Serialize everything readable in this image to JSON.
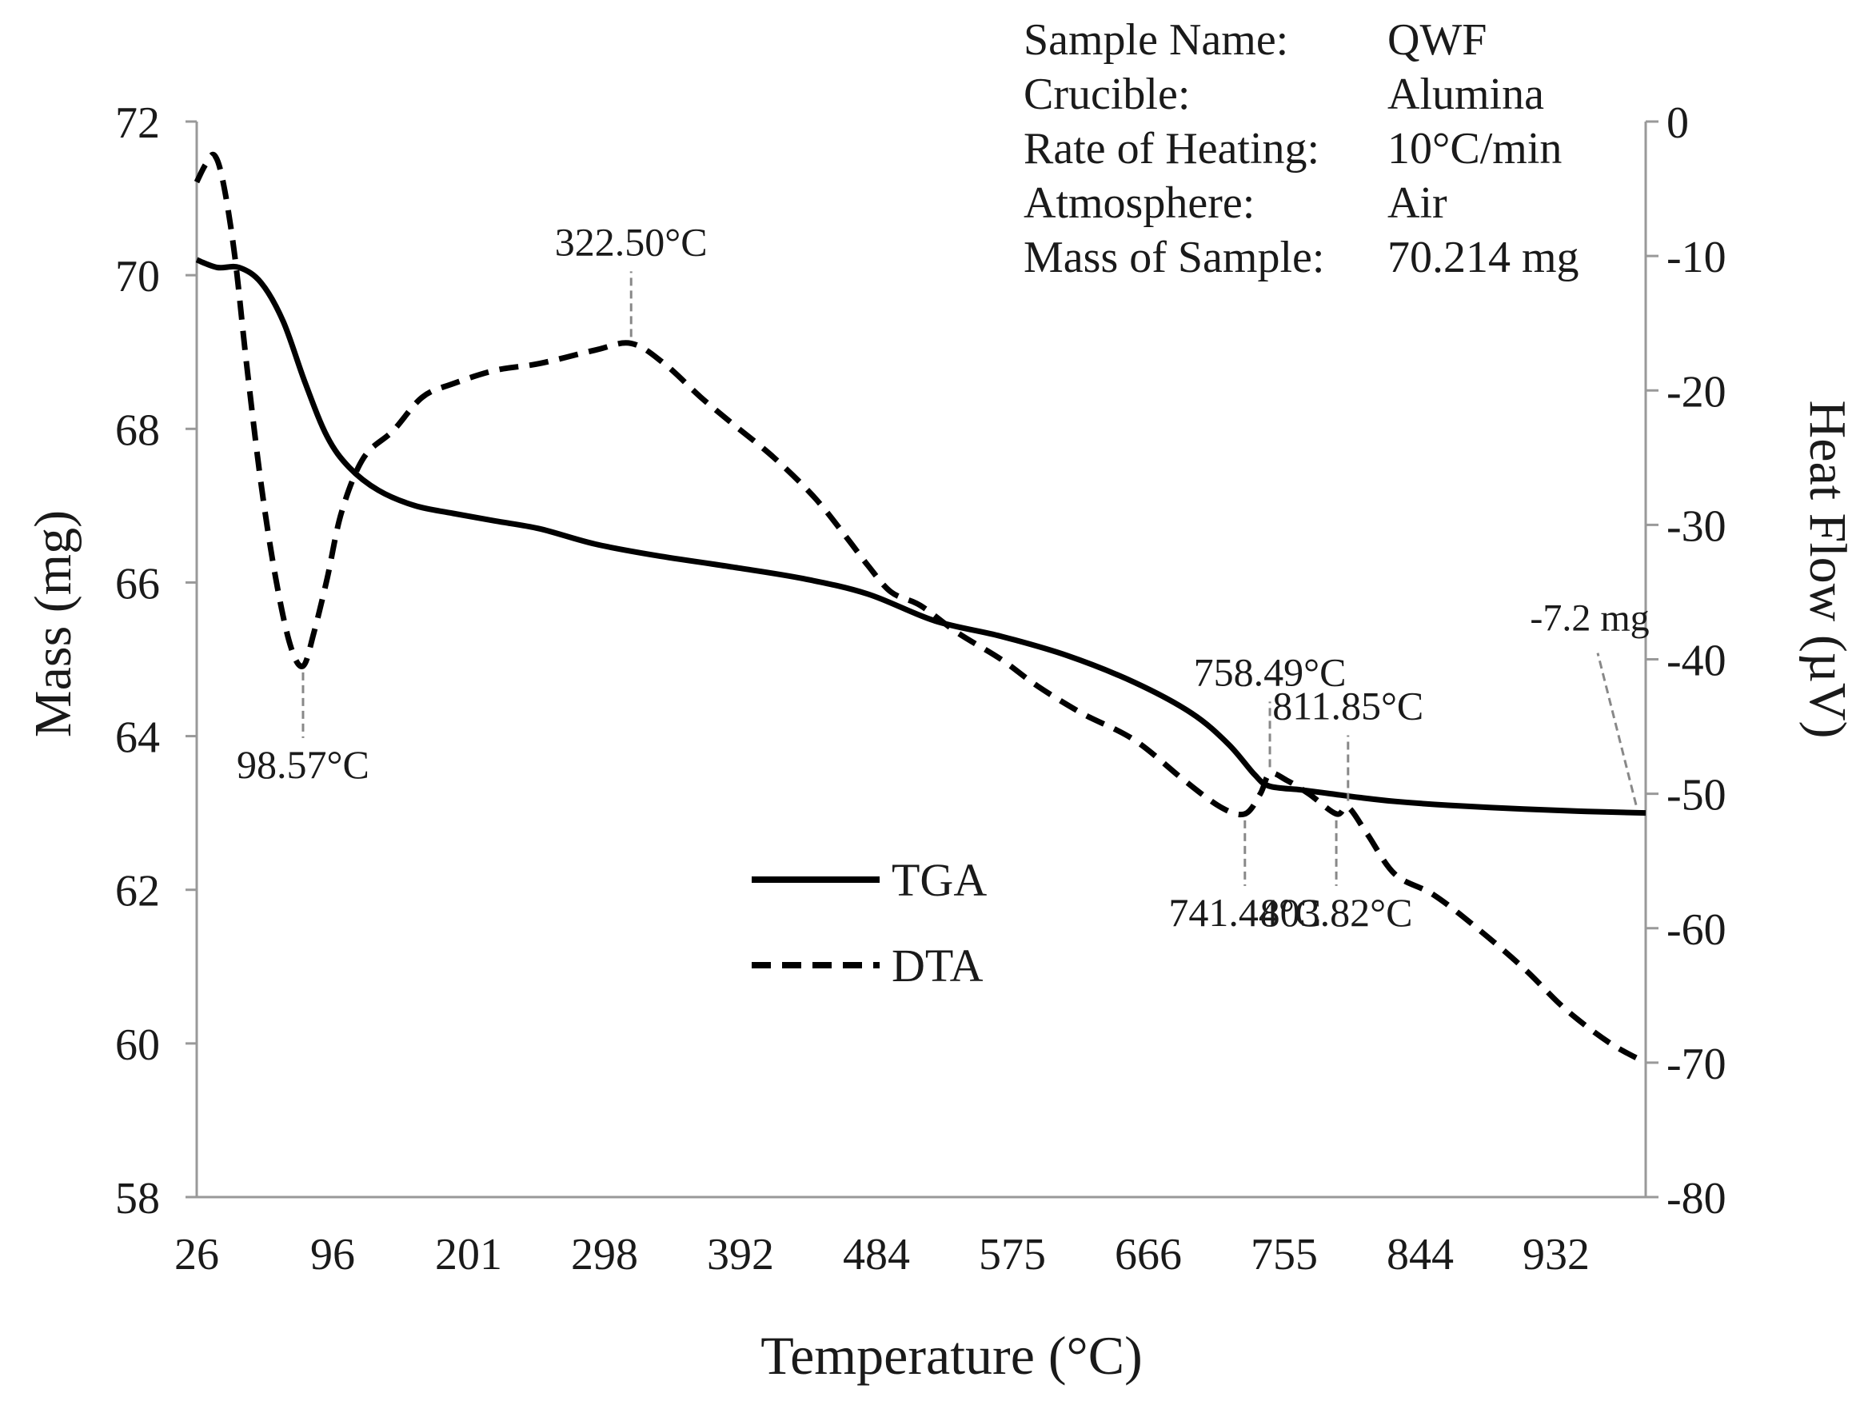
{
  "chart_data": {
    "type": "line",
    "xlabel": "Temperature (°C)",
    "ylabel_left": "Mass (mg)",
    "ylabel_right": "Heat Flow (µV)",
    "x_tick_labels": [
      "26",
      "96",
      "201",
      "298",
      "392",
      "484",
      "575",
      "666",
      "755",
      "844",
      "932"
    ],
    "left_axis": {
      "ylim": [
        58,
        72
      ],
      "ticks": [
        "58",
        "60",
        "62",
        "64",
        "66",
        "68",
        "70",
        "72"
      ]
    },
    "right_axis": {
      "ylim": [
        -80,
        0
      ],
      "ticks": [
        "0",
        "-10",
        "-20",
        "-30",
        "-40",
        "-50",
        "-60",
        "-70",
        "-80"
      ]
    },
    "grid": false,
    "legend_position": "center-left",
    "info_box": [
      {
        "key": "Sample Name:",
        "value": "QWF"
      },
      {
        "key": "Crucible:",
        "value": "Alumina"
      },
      {
        "key": "Rate of Heating:",
        "value": "10°C/min"
      },
      {
        "key": "Atmosphere:",
        "value": "Air"
      },
      {
        "key": "Mass of Sample:",
        "value": "70.214 mg"
      }
    ],
    "series": [
      {
        "name": "TGA",
        "axis": "left",
        "line_style": "solid",
        "color": "#000000",
        "x": [
          26,
          40,
          55,
          70,
          85,
          100,
          115,
          130,
          150,
          175,
          201,
          230,
          260,
          298,
          340,
          392,
          440,
          484,
          530,
          575,
          620,
          666,
          705,
          730,
          748,
          758,
          780,
          800,
          820,
          844,
          880,
          932,
          975,
          1015
        ],
        "y": [
          70.2,
          70.1,
          70.1,
          69.9,
          69.4,
          68.6,
          67.9,
          67.5,
          67.2,
          67.0,
          66.9,
          66.8,
          66.7,
          66.5,
          66.35,
          66.2,
          66.05,
          65.85,
          65.5,
          65.3,
          65.05,
          64.7,
          64.3,
          63.9,
          63.5,
          63.35,
          63.3,
          63.25,
          63.2,
          63.15,
          63.1,
          63.05,
          63.02,
          63.0
        ]
      },
      {
        "name": "DTA",
        "axis": "right",
        "line_style": "dashed",
        "color": "#000000",
        "x": [
          26,
          32,
          38,
          44,
          52,
          60,
          70,
          80,
          90,
          98.57,
          106,
          115,
          125,
          140,
          160,
          180,
          201,
          230,
          260,
          298,
          322.5,
          345,
          370,
          392,
          420,
          448,
          470,
          484,
          500,
          520,
          545,
          575,
          600,
          630,
          666,
          700,
          725,
          741.44,
          752,
          758.49,
          770,
          785,
          803.82,
          811.85,
          825,
          844,
          870,
          900,
          932,
          960,
          990,
          1015
        ],
        "y": [
          -4.5,
          -3.2,
          -2.5,
          -4.5,
          -10,
          -18,
          -27,
          -34,
          -39,
          -40.5,
          -38,
          -34,
          -29,
          -25,
          -23,
          -20.5,
          -19.5,
          -18.5,
          -18,
          -17,
          -16.5,
          -18,
          -20.5,
          -22.5,
          -25,
          -28,
          -31,
          -33,
          -35,
          -36,
          -38,
          -40,
          -42,
          -44,
          -46,
          -49,
          -51,
          -51.5,
          -50,
          -48.5,
          -49,
          -50,
          -51.5,
          -51,
          -53,
          -56,
          -57.5,
          -60,
          -63,
          -66,
          -68.5,
          -70
        ]
      }
    ],
    "annotations": [
      {
        "text": "98.57°C",
        "x": 98.57,
        "y": -40.5,
        "axis": "right",
        "label_side": "below"
      },
      {
        "text": "322.50°C",
        "x": 322.5,
        "y": -16.5,
        "axis": "right",
        "label_side": "above"
      },
      {
        "text": "741.44°C",
        "x": 741.44,
        "y": -51.5,
        "axis": "right",
        "label_side": "below"
      },
      {
        "text": "758.49°C",
        "x": 758.49,
        "y": -48.5,
        "axis": "right",
        "label_side": "above"
      },
      {
        "text": "803.82°C",
        "x": 803.82,
        "y": -51.5,
        "axis": "right",
        "label_side": "below"
      },
      {
        "text": "811.85°C",
        "x": 811.85,
        "y": -51,
        "axis": "right",
        "label_side": "above"
      },
      {
        "text": "-7.2 mg",
        "x": 1015,
        "y": 63.0,
        "axis": "left",
        "label_side": "above-left"
      }
    ]
  }
}
